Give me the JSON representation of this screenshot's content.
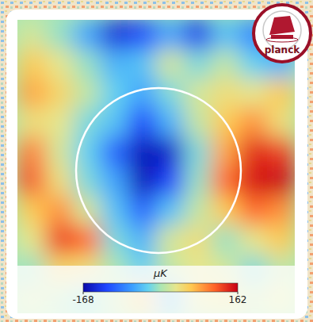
{
  "chart_data": {
    "type": "heatmap",
    "tick_labels": false,
    "cells": [
      [
        20,
        -10,
        -60,
        -140,
        -120,
        -60,
        -130,
        -40,
        -80,
        -60
      ],
      [
        60,
        30,
        -10,
        -50,
        -40,
        20,
        -20,
        10,
        -30,
        -50
      ],
      [
        80,
        50,
        10,
        -30,
        -60,
        -20,
        20,
        40,
        30,
        60
      ],
      [
        40,
        30,
        -20,
        -40,
        -120,
        -50,
        10,
        60,
        90,
        40
      ],
      [
        100,
        20,
        -30,
        -100,
        -160,
        -150,
        -20,
        80,
        140,
        130
      ],
      [
        120,
        40,
        -20,
        -60,
        -160,
        -120,
        -10,
        110,
        150,
        160
      ],
      [
        60,
        90,
        20,
        -40,
        -100,
        -40,
        10,
        60,
        110,
        90
      ],
      [
        30,
        130,
        110,
        -20,
        -50,
        20,
        40,
        -10,
        30,
        60
      ],
      [
        -10,
        50,
        40,
        0,
        -30,
        10,
        30,
        20,
        -20,
        10
      ],
      [
        20,
        0,
        -20,
        10,
        60,
        -40,
        30,
        40,
        10,
        30
      ]
    ],
    "colorbar": {
      "label": "μK",
      "range": [
        -168,
        162
      ],
      "ticks": [
        -168,
        162
      ]
    },
    "annotations": [
      "planck"
    ]
  }
}
